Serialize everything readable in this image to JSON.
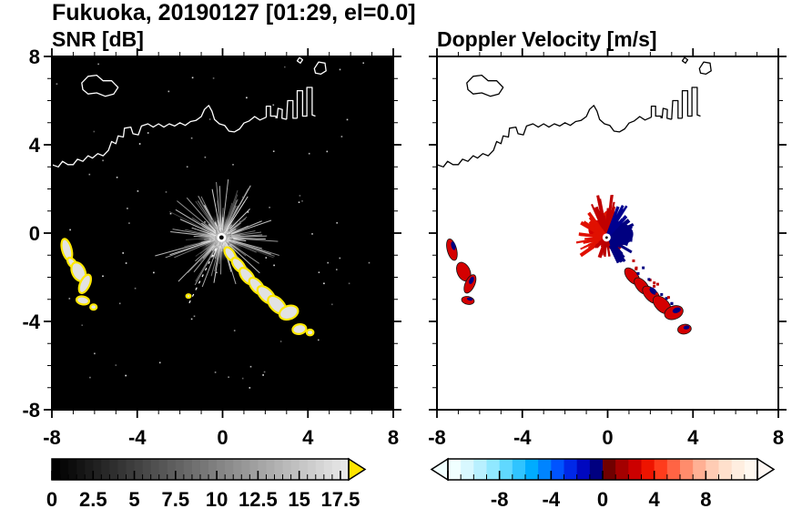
{
  "title": "Fukuoka, 20190127 [01:29, el=0.0]",
  "panels": {
    "left": {
      "title": "SNR [dB]"
    },
    "right": {
      "title": "Doppler Velocity [m/s]"
    }
  },
  "axes": {
    "range": [
      -8,
      8
    ],
    "minor_step": 1,
    "x": {
      "values": [
        -8,
        -4,
        0,
        4,
        8
      ],
      "labels": [
        "-8",
        "-4",
        "0",
        "4",
        "8"
      ]
    },
    "y": {
      "values": [
        8,
        4,
        0,
        -4,
        -8
      ],
      "labels": [
        "8",
        "4",
        "0",
        "-4",
        "-8"
      ]
    }
  },
  "colorbars": {
    "snr": {
      "min": 0,
      "max": 18,
      "segments": 36,
      "minor_step": 0.5,
      "major_values": [
        0,
        2.5,
        5,
        7.5,
        10,
        12.5,
        15,
        17.5
      ],
      "labels": [
        "0",
        "2.5",
        "5",
        "7.5",
        "10",
        "12.5",
        "15",
        "17.5"
      ],
      "start_gray": 0,
      "end_gray": 232,
      "arrow_color": "#ffe400"
    },
    "velocity": {
      "min": -12,
      "max": 12,
      "minor_step": 1,
      "major_step": 4,
      "major_values": [
        -8,
        -4,
        0,
        4,
        8
      ],
      "labels": [
        "-8",
        "-4",
        "0",
        "4",
        "8"
      ],
      "colors": [
        "#f0ffff",
        "#d8f8ff",
        "#b8f0ff",
        "#90e8ff",
        "#60d8ff",
        "#30c4ff",
        "#00acff",
        "#0084ff",
        "#0054ff",
        "#0028e8",
        "#0008c0",
        "#000080",
        "#700000",
        "#a40000",
        "#cc0000",
        "#ee1400",
        "#ff3c1c",
        "#ff6444",
        "#ff8c6c",
        "#ffb094",
        "#ffccb4",
        "#ffe0cc",
        "#ffeee0",
        "#fff8f0"
      ],
      "left_arrow": "#f2ffff",
      "right_arrow": "#fff8f4"
    }
  },
  "chart_data": {
    "type": "heatmap",
    "subtype": "dual-panel radar PPI",
    "title": "Fukuoka, 20190127 [01:29, el=0.0]",
    "x_range": [
      -8,
      8
    ],
    "y_range": [
      -8,
      8
    ],
    "panels": [
      {
        "name": "SNR",
        "units": "dB",
        "colorbar_min": 0,
        "colorbar_max": 17.5,
        "background": "#000000"
      },
      {
        "name": "Doppler Velocity",
        "units": "m/s",
        "colorbar_min": -8,
        "colorbar_max": 8,
        "background": "#ffffff"
      }
    ],
    "radar_center": [
      -0.05,
      -0.2
    ],
    "features": {
      "coastline": {
        "main": [
          [
            -8.0,
            3.1
          ],
          [
            -7.7,
            3.0
          ],
          [
            -7.5,
            3.25
          ],
          [
            -7.25,
            3.1
          ],
          [
            -7.0,
            3.1
          ],
          [
            -6.8,
            3.35
          ],
          [
            -6.55,
            3.25
          ],
          [
            -6.3,
            3.5
          ],
          [
            -6.1,
            3.4
          ],
          [
            -5.85,
            3.6
          ],
          [
            -5.6,
            3.5
          ],
          [
            -5.35,
            3.75
          ],
          [
            -5.2,
            4.15
          ],
          [
            -5.0,
            4.05
          ],
          [
            -4.9,
            4.4
          ],
          [
            -4.65,
            4.35
          ],
          [
            -4.6,
            4.75
          ],
          [
            -4.3,
            4.8
          ],
          [
            -4.2,
            4.5
          ],
          [
            -3.95,
            4.45
          ],
          [
            -3.8,
            4.85
          ],
          [
            -3.5,
            4.95
          ],
          [
            -3.25,
            4.8
          ],
          [
            -3.0,
            4.95
          ],
          [
            -2.75,
            4.8
          ],
          [
            -2.5,
            4.95
          ],
          [
            -2.25,
            4.85
          ],
          [
            -2.0,
            5.0
          ],
          [
            -1.75,
            4.88
          ],
          [
            -1.5,
            5.05
          ],
          [
            -1.25,
            5.1
          ],
          [
            -1.0,
            5.28
          ],
          [
            -0.85,
            5.6
          ],
          [
            -0.65,
            5.78
          ],
          [
            -0.5,
            5.52
          ],
          [
            -0.38,
            5.15
          ],
          [
            -0.15,
            4.95
          ],
          [
            0.1,
            4.88
          ],
          [
            0.3,
            4.62
          ],
          [
            0.55,
            4.58
          ],
          [
            0.8,
            4.72
          ],
          [
            1.0,
            4.98
          ],
          [
            1.25,
            5.08
          ],
          [
            1.5,
            5.28
          ],
          [
            1.75,
            5.12
          ],
          [
            2.05,
            5.25
          ]
        ],
        "shapes": [
          [
            [
              2.05,
              5.25
            ],
            [
              2.05,
              5.75
            ],
            [
              2.25,
              5.75
            ],
            [
              2.25,
              5.3
            ],
            [
              2.5,
              5.3
            ],
            [
              2.5,
              5.2
            ]
          ],
          [
            [
              2.55,
              5.2
            ],
            [
              2.6,
              5.65
            ],
            [
              2.8,
              5.6
            ],
            [
              2.78,
              5.2
            ],
            [
              3.0,
              5.15
            ]
          ],
          [
            [
              3.0,
              5.15
            ],
            [
              3.05,
              6.0
            ],
            [
              3.3,
              6.0
            ],
            [
              3.3,
              5.2
            ],
            [
              3.5,
              5.2
            ]
          ],
          [
            [
              3.5,
              5.2
            ],
            [
              3.5,
              6.45
            ],
            [
              3.75,
              6.45
            ],
            [
              3.75,
              5.3
            ],
            [
              3.95,
              5.3
            ],
            [
              3.95,
              6.6
            ],
            [
              4.2,
              6.6
            ],
            [
              4.2,
              5.35
            ],
            [
              4.35,
              5.3
            ]
          ]
        ],
        "islands": [
          [
            [
              -6.6,
              6.8
            ],
            [
              -6.3,
              7.1
            ],
            [
              -5.9,
              7.15
            ],
            [
              -5.6,
              6.9
            ],
            [
              -5.2,
              6.9
            ],
            [
              -4.9,
              6.6
            ],
            [
              -5.1,
              6.3
            ],
            [
              -5.5,
              6.2
            ],
            [
              -5.9,
              6.35
            ],
            [
              -6.3,
              6.3
            ],
            [
              -6.55,
              6.5
            ]
          ],
          [
            [
              4.3,
              7.45
            ],
            [
              4.5,
              7.75
            ],
            [
              4.8,
              7.7
            ],
            [
              4.85,
              7.35
            ],
            [
              4.6,
              7.2
            ],
            [
              4.35,
              7.25
            ]
          ],
          [
            [
              3.5,
              7.8
            ],
            [
              3.6,
              7.95
            ],
            [
              3.75,
              7.85
            ],
            [
              3.65,
              7.7
            ]
          ]
        ]
      },
      "snr": {
        "streaks": {
          "seed": 9,
          "count": 160,
          "rmin": 0.3,
          "rmax": 2.4,
          "long_count": 14,
          "long_rmax": 4.4
        },
        "noise": {
          "seed": 21,
          "count": 80
        },
        "dashed_ray": {
          "angle": 243,
          "r0": 0.55,
          "r1": 3.35
        },
        "blob_fill": "#e2e2e2",
        "blob_stroke": "#ffe800"
      },
      "blobs": [
        {
          "x": -7.3,
          "y": -0.75,
          "rx": 0.22,
          "ry": 0.5,
          "rot": 15,
          "vel": true,
          "navy": true
        },
        {
          "x": -7.05,
          "y": -1.35,
          "rx": 0.16,
          "ry": 0.28,
          "rot": 40,
          "vel": false,
          "navy": false
        },
        {
          "x": -6.75,
          "y": -1.75,
          "rx": 0.3,
          "ry": 0.45,
          "rot": 25,
          "vel": true,
          "navy": false
        },
        {
          "x": -6.45,
          "y": -2.3,
          "rx": 0.22,
          "ry": 0.45,
          "rot": -25,
          "vel": true,
          "navy": true
        },
        {
          "x": -6.55,
          "y": -3.05,
          "rx": 0.3,
          "ry": 0.18,
          "rot": -10,
          "vel": true,
          "navy": true
        },
        {
          "x": -6.05,
          "y": -3.35,
          "rx": 0.15,
          "ry": 0.12,
          "rot": 0,
          "vel": false,
          "navy": false
        },
        {
          "x": -1.6,
          "y": -2.85,
          "rx": 0.1,
          "ry": 0.08,
          "rot": 0,
          "vel": false,
          "navy": false
        },
        {
          "x": 0.35,
          "y": -0.95,
          "rx": 0.2,
          "ry": 0.35,
          "rot": 35,
          "vel": false,
          "navy": false
        },
        {
          "x": 0.75,
          "y": -1.45,
          "rx": 0.22,
          "ry": 0.4,
          "rot": 40,
          "vel": false,
          "navy": false
        },
        {
          "x": 1.15,
          "y": -1.95,
          "rx": 0.25,
          "ry": 0.45,
          "rot": 40,
          "vel": true,
          "navy": false
        },
        {
          "x": 1.6,
          "y": -2.4,
          "rx": 0.25,
          "ry": 0.45,
          "rot": 40,
          "vel": true,
          "navy": false
        },
        {
          "x": 2.05,
          "y": -2.8,
          "rx": 0.28,
          "ry": 0.5,
          "rot": 45,
          "vel": true,
          "navy": true
        },
        {
          "x": 2.55,
          "y": -3.25,
          "rx": 0.3,
          "ry": 0.5,
          "rot": 45,
          "vel": true,
          "navy": false
        },
        {
          "x": 3.1,
          "y": -3.6,
          "rx": 0.45,
          "ry": 0.3,
          "rot": 20,
          "vel": true,
          "navy": true
        },
        {
          "x": 3.6,
          "y": -4.35,
          "rx": 0.32,
          "ry": 0.22,
          "rot": 10,
          "vel": true,
          "navy": true
        },
        {
          "x": 4.1,
          "y": -4.5,
          "rx": 0.16,
          "ry": 0.13,
          "rot": 0,
          "vel": false,
          "navy": false
        }
      ],
      "velocity": {
        "dense": [
          {
            "x": -0.35,
            "y": 0.15,
            "rx": 0.55,
            "ry": 0.45,
            "color": "#d40000"
          },
          {
            "x": 0.1,
            "y": 0.55,
            "rx": 0.4,
            "ry": 0.5,
            "color": "#e01800"
          },
          {
            "x": 0.6,
            "y": -0.05,
            "rx": 0.6,
            "ry": 0.5,
            "color": "#000080"
          },
          {
            "x": 0.35,
            "y": -0.5,
            "rx": 0.35,
            "ry": 0.3,
            "color": "#b00000"
          }
        ],
        "spikes": [
          {
            "color": "#c00000",
            "a0": 70,
            "a1": 115,
            "rmin": 0.6,
            "rmax": 2.1,
            "count": 26,
            "w": 3
          },
          {
            "color": "#e01000",
            "a0": 115,
            "a1": 215,
            "rmin": 0.4,
            "rmax": 1.5,
            "count": 40,
            "w": 3
          },
          {
            "color": "#c00000",
            "a0": 215,
            "a1": 255,
            "rmin": 0.3,
            "rmax": 1.0,
            "count": 12,
            "w": 3
          },
          {
            "color": "#000080",
            "a0": -65,
            "a1": 45,
            "rmin": 0.3,
            "rmax": 1.4,
            "count": 46,
            "w": 3.5
          },
          {
            "color": "#000090",
            "a0": 45,
            "a1": 70,
            "rmin": 0.5,
            "rmax": 1.9,
            "count": 10,
            "w": 2.5
          },
          {
            "color": "#b80000",
            "a0": 255,
            "a1": 290,
            "rmin": 0.3,
            "rmax": 0.9,
            "count": 8,
            "w": 2.5
          }
        ],
        "specks": {
          "seed": 5,
          "line": [
            [
              0.9,
              -1.1
            ],
            [
              3.3,
              -3.5
            ]
          ],
          "count": 16,
          "colors": [
            "#c00000",
            "#000080"
          ],
          "size": 3
        },
        "blob_fill": "#d40000",
        "blob_stroke": "#151515",
        "navy": "#000080"
      }
    }
  }
}
